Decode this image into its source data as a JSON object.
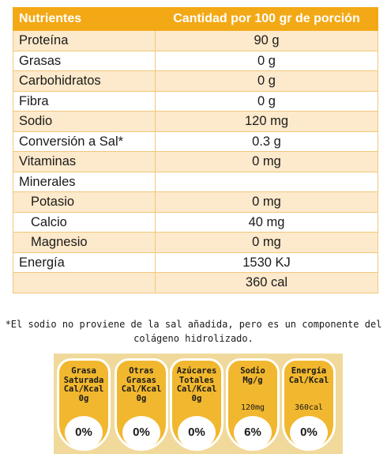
{
  "table": {
    "header": [
      "Nutrientes",
      "Cantidad por 100 gr de porción"
    ],
    "rows": [
      {
        "name": "Proteína",
        "value": "90 g"
      },
      {
        "name": "Grasas",
        "value": "0 g"
      },
      {
        "name": "Carbohidratos",
        "value": "0 g"
      },
      {
        "name": "Fibra",
        "value": "0 g"
      },
      {
        "name": "Sodio",
        "value": "120 mg"
      },
      {
        "name": "Conversión a Sal*",
        "value": "0.3 g"
      },
      {
        "name": "Vitaminas",
        "value": "0 mg"
      },
      {
        "name": "Minerales",
        "value": ""
      },
      {
        "name": "Potasio",
        "value": "0 mg"
      },
      {
        "name": "Calcio",
        "value": "40 mg"
      },
      {
        "name": "Magnesio",
        "value": "0 mg"
      },
      {
        "name": "Energía",
        "value": "1530 KJ"
      },
      {
        "name": "",
        "value": "360 cal"
      }
    ]
  },
  "footnote": {
    "line1": "*El sodio no proviene de la sal añadida, pero es un componente del",
    "line2": "colágeno hidrolizado."
  },
  "seals": [
    {
      "label": "Grasa\nSaturada\nCal/Kcal\n0g",
      "amount": "",
      "percent": "0%"
    },
    {
      "label": "Otras\nGrasas\nCal/Kcal\n0g",
      "amount": "",
      "percent": "0%"
    },
    {
      "label": "Azúcares\nTotales\nCal/Kcal\n0g",
      "amount": "",
      "percent": "0%"
    },
    {
      "label": "Sodio\nMg/g",
      "amount": "120mg",
      "percent": "6%"
    },
    {
      "label": "Energía\nCal/Kcal",
      "amount": "360cal",
      "percent": "0%"
    }
  ],
  "colors": {
    "header": "#f3a916",
    "row_band": "#fde9cb",
    "seal": "#f1b72e",
    "seal_band": "#f0d99b"
  }
}
